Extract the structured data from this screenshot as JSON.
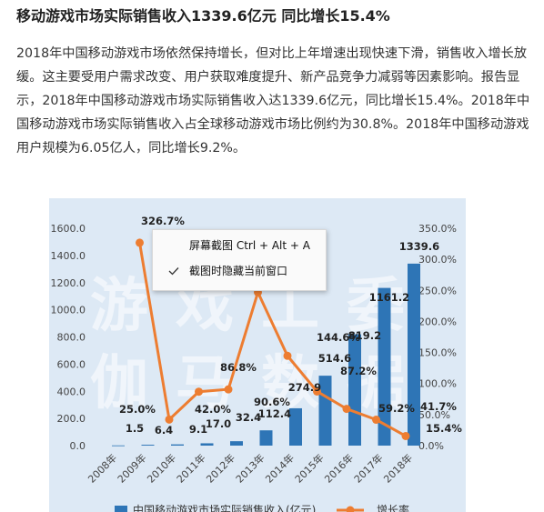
{
  "article": {
    "title": "移动游戏市场实际销售收入1339.6亿元 同比增长15.4%",
    "paragraph": "2018年中国移动游戏市场依然保持增长，但对比上年增速出现快速下滑，销售收入增长放缓。这主要受用户需求改变、用户获取难度提升、新产品竞争力减弱等因素影响。报告显示，2018年中国移动游戏市场实际销售收入达1339.6亿元，同比增长15.4%。2018年中国移动游戏市场实际销售收入占全球移动游戏市场比例约为30.8%。2018年中国移动游戏用户规模为6.05亿人，同比增长9.2%。"
  },
  "context_menu": {
    "items": [
      {
        "label": "屏幕截图 Ctrl + Alt + A",
        "checked": false
      },
      {
        "label": "截图时隐藏当前窗口",
        "checked": true
      }
    ],
    "check_icon": "checkmark-icon"
  },
  "chart_data": {
    "type": "bar+line",
    "categories": [
      "2008年",
      "2009年",
      "2010年",
      "2011年",
      "2012年",
      "2013年",
      "2014年",
      "2015年",
      "2016年",
      "2017年",
      "2018年"
    ],
    "series": [
      {
        "name": "中国移动游戏市场实际销售收入(亿元)",
        "type": "bar",
        "axis": "left",
        "color": "#2e75b6",
        "values": [
          1.5,
          6.4,
          9.1,
          17.0,
          32.4,
          112.4,
          274.9,
          514.6,
          819.2,
          1161.2,
          1339.6
        ],
        "labels": [
          "1.5",
          "6.4",
          "9.1",
          "17.0",
          "32.4",
          "112.4",
          "274.9",
          "514.6",
          "819.2",
          "1161.2",
          "1339.6"
        ]
      },
      {
        "name": "增长率",
        "type": "line",
        "axis": "right",
        "color": "#ed7d31",
        "values": [
          null,
          326.7,
          42.0,
          86.8,
          90.6,
          246.9,
          144.6,
          87.2,
          59.2,
          41.7,
          15.4
        ],
        "labels": [
          "",
          "326.7%",
          "42.0%",
          "86.8%",
          "90.6%",
          "",
          "144.6%",
          "87.2%",
          "59.2%",
          "41.7%",
          "15.4%"
        ]
      }
    ],
    "extra_labels": [
      "25.0%"
    ],
    "y_left": {
      "ticks": [
        "0.0",
        "200.0",
        "400.0",
        "600.0",
        "800.0",
        "1000.0",
        "1200.0",
        "1400.0",
        "1600.0"
      ],
      "range": [
        0,
        1600
      ]
    },
    "y_right": {
      "ticks": [
        "0.0%",
        "50.0%",
        "100.0%",
        "150.0%",
        "200.0%",
        "250.0%",
        "300.0%",
        "350.0%"
      ],
      "range": [
        0,
        350
      ]
    },
    "watermark": [
      "游戏工委",
      "伽马数据"
    ],
    "legend_position": "bottom",
    "grid": false
  }
}
